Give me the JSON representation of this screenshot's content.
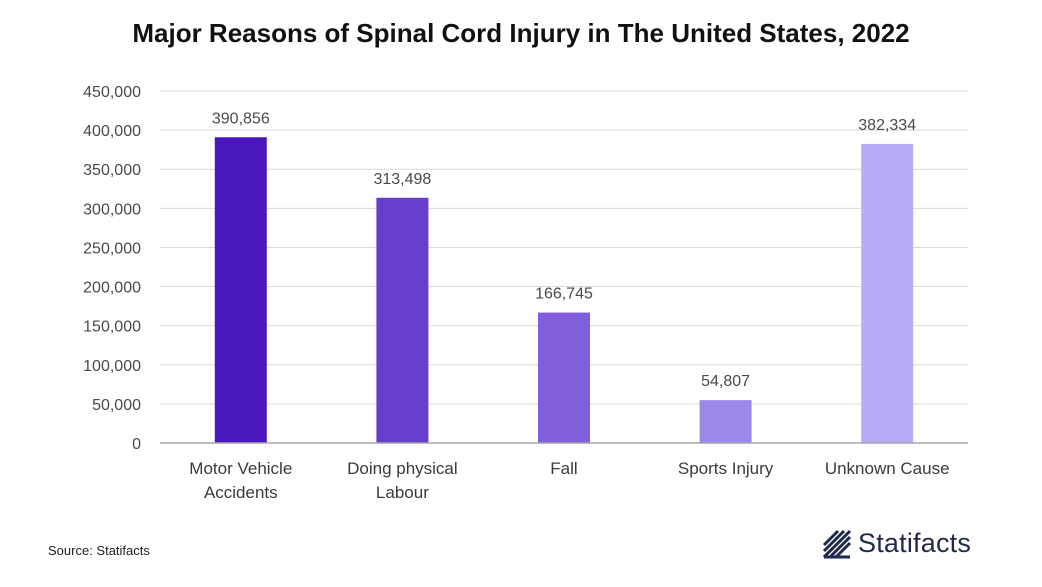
{
  "chart_data": {
    "type": "bar",
    "title": "Major Reasons of Spinal Cord Injury in The United States, 2022",
    "categories": [
      [
        "Motor Vehicle",
        "Accidents"
      ],
      [
        "Doing physical",
        "Labour"
      ],
      [
        "Fall"
      ],
      [
        "Sports Injury"
      ],
      [
        "Unknown Cause"
      ]
    ],
    "values": [
      390856,
      313498,
      166745,
      54807,
      382334
    ],
    "data_labels": [
      "390,856",
      "313,498",
      "166,745",
      "54,807",
      "382,334"
    ],
    "bar_colors": [
      "#4a17bf",
      "#6640cc",
      "#7f5fdc",
      "#9d87ea",
      "#b9abf7"
    ],
    "yticks": [
      "0",
      "50,000",
      "100,000",
      "150,000",
      "200,000",
      "250,000",
      "300,000",
      "350,000",
      "400,000",
      "450,000"
    ],
    "ylim": [
      0,
      450000
    ],
    "ystep": 50000,
    "xlabel": "",
    "ylabel": "",
    "grid": true
  },
  "footer": {
    "source": "Source: Statifacts",
    "brand": "Statifacts"
  },
  "colors": {
    "grid": "#d9d9d9",
    "axis": "#a6a6a6",
    "logo": "#1e2a4a"
  }
}
